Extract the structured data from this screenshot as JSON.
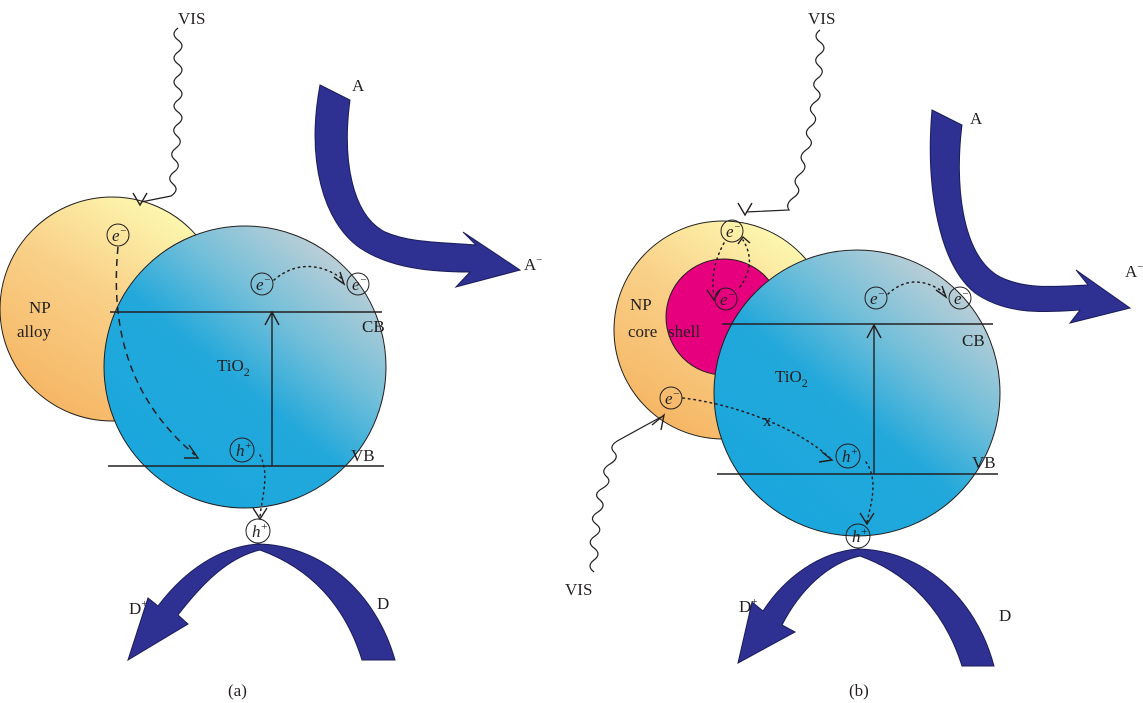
{
  "panel_a": {
    "caption": "(a)",
    "vis_label": "VIS",
    "np_label_line1": "NP",
    "np_label_line2": "alloy",
    "tio2_label": "TiO",
    "tio2_sub": "2",
    "cb_label": "CB",
    "vb_label": "VB",
    "acceptor": "A",
    "acceptor_reduced": "A",
    "acceptor_reduced_sup": "−",
    "donor": "D",
    "donor_oxidized": "D",
    "donor_oxidized_sup": "+",
    "electron": "e",
    "electron_sup": "−",
    "hole": "h",
    "hole_sup": "+"
  },
  "panel_b": {
    "caption": "(b)",
    "vis_label_top": "VIS",
    "vis_label_bottom": "VIS",
    "np_label_line1": "NP",
    "np_label_core": "core",
    "np_label_shell": "shell",
    "tio2_label": "TiO",
    "tio2_sub": "2",
    "cb_label": "CB",
    "vb_label": "VB",
    "blocked_mark": "x",
    "acceptor": "A",
    "acceptor_reduced": "A",
    "acceptor_reduced_sup": "−",
    "donor": "D",
    "donor_oxidized": "D",
    "donor_oxidized_sup": "+",
    "electron": "e",
    "electron_sup": "−",
    "hole": "h",
    "hole_sup": "+"
  },
  "colors": {
    "np_gradient_light": "#fdf6a8",
    "np_gradient_dark": "#f6b96a",
    "tio2_light": "#c9d3d8",
    "tio2_blue": "#1fa9dc",
    "core": "#e6007e",
    "arrow": "#2e3192"
  }
}
